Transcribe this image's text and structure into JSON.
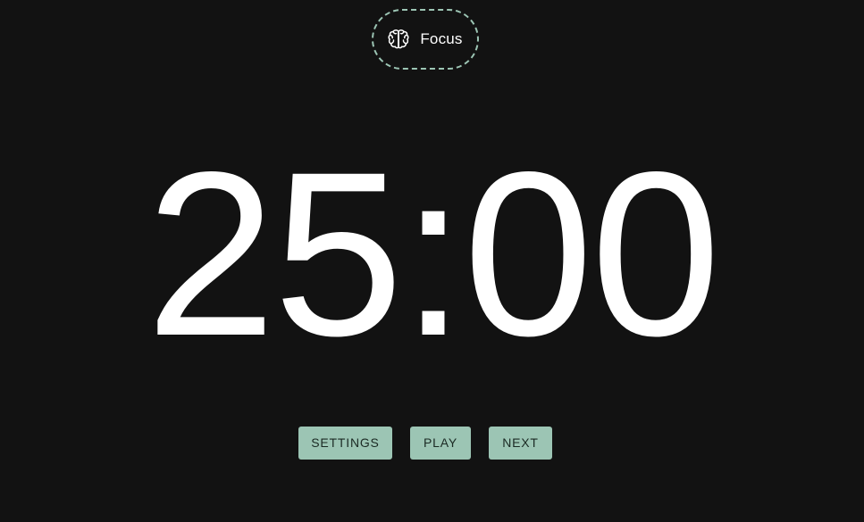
{
  "mode": {
    "icon": "brain-icon",
    "label": "Focus",
    "accent_color": "#9cc5b4"
  },
  "timer": {
    "display": "25:00"
  },
  "controls": {
    "settings_label": "SETTINGS",
    "play_label": "PLAY",
    "next_label": "NEXT"
  },
  "colors": {
    "background": "#121212",
    "button": "#9cc5b4",
    "text": "#ffffff"
  }
}
